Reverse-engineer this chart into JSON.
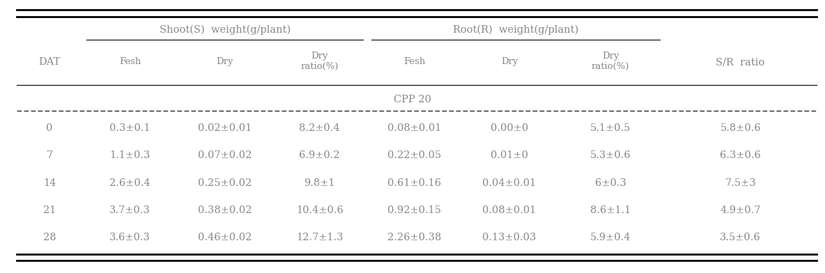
{
  "col_headers_top": [
    "Shoot(S)  weight(g/plant)",
    "Root(R)  weight(g/plant)"
  ],
  "col_headers_mid": [
    "Fesh",
    "Dry",
    "Dry\nratio(%)",
    "Fesh",
    "Dry",
    "Dry\nratio(%)",
    "S/R  ratio"
  ],
  "row_header": "DAT",
  "group_label": "CPP 20",
  "dat_values": [
    "0",
    "7",
    "14",
    "21",
    "28"
  ],
  "table_data": [
    [
      "0.3±0.1",
      "0.02±0.01",
      "8.2±0.4",
      "0.08±0.01",
      "0.00±0",
      "5.1±0.5",
      "5.8±0.6"
    ],
    [
      "1.1±0.3",
      "0.07±0.02",
      "6.9±0.2",
      "0.22±0.05",
      "0.01±0",
      "5.3±0.6",
      "6.3±0.6"
    ],
    [
      "2.6±0.4",
      "0.25±0.02",
      "9.8±1",
      "0.61±0.16",
      "0.04±0.01",
      "6±0.3",
      "7.5±3"
    ],
    [
      "3.7±0.3",
      "0.38±0.02",
      "10.4±0.6",
      "0.92±0.15",
      "0.08±0.01",
      "8.6±1.1",
      "4.9±0.7"
    ],
    [
      "3.6±0.3",
      "0.46±0.02",
      "12.7±1.3",
      "2.26±0.38",
      "0.13±0.03",
      "5.9±0.4",
      "3.5±0.6"
    ]
  ],
  "bg_color": "#ffffff",
  "header_color": "#888888",
  "figsize": [
    11.84,
    3.92
  ],
  "dpi": 100
}
